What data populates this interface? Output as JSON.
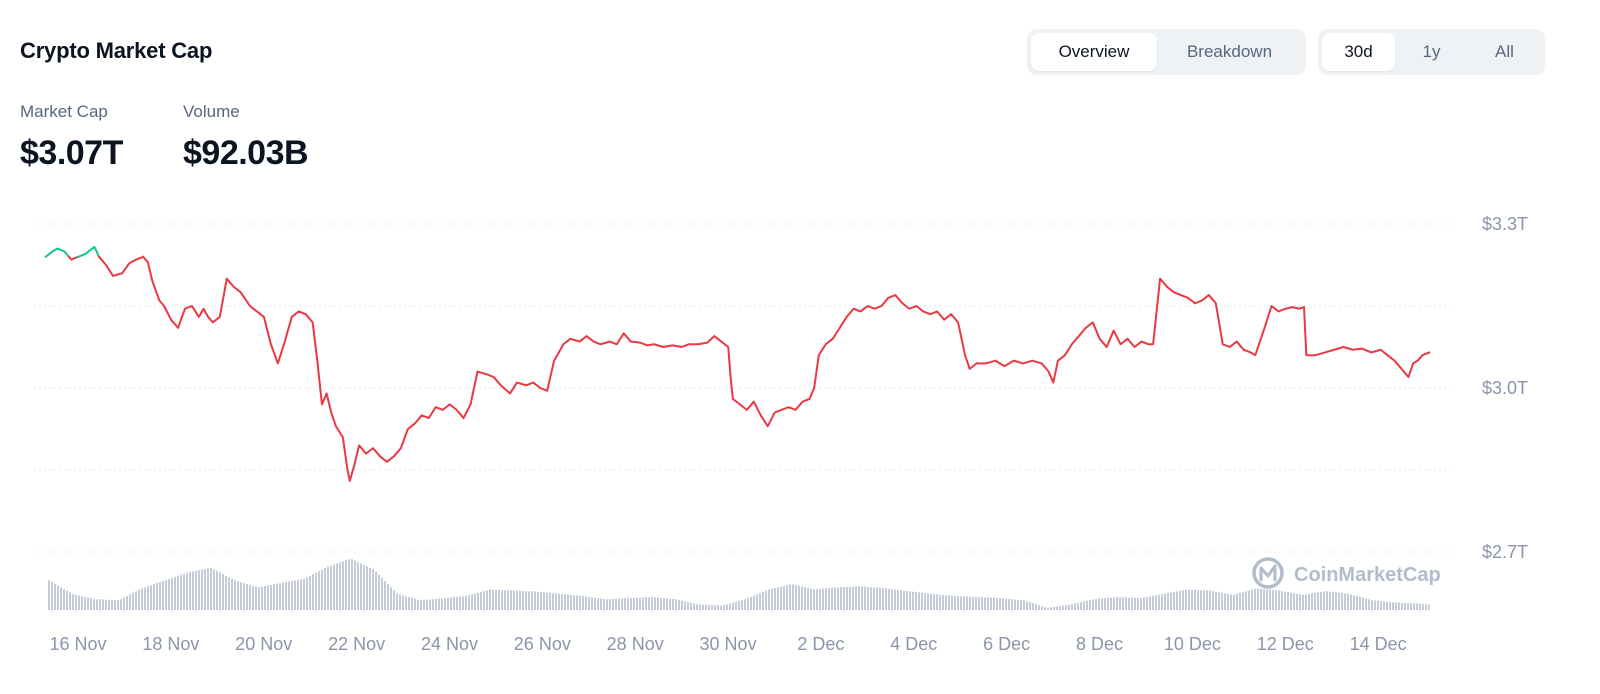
{
  "header": {
    "title": "Crypto Market Cap",
    "view_tabs": [
      {
        "label": "Overview",
        "active": true
      },
      {
        "label": "Breakdown",
        "active": false
      }
    ],
    "range_tabs": [
      {
        "label": "30d",
        "active": true
      },
      {
        "label": "1y",
        "active": false
      },
      {
        "label": "All",
        "active": false
      }
    ]
  },
  "stats": {
    "market_cap": {
      "label": "Market Cap",
      "value": "$3.07T"
    },
    "volume": {
      "label": "Volume",
      "value": "$92.03B"
    }
  },
  "watermark": {
    "text": "CoinMarketCap",
    "icon": "coinmarketcap-logo-icon"
  },
  "colors": {
    "line_down": "#ea3943",
    "line_up": "#16c784",
    "volume": "#c5cbd9",
    "grid": "#e3e7ee",
    "tick": "#8b95a9"
  },
  "chart_data": {
    "type": "line",
    "ylim": [
      2.7,
      3.3
    ],
    "y_unit": "T",
    "y_ticks": [
      {
        "value": 3.3,
        "label": "$3.3T"
      },
      {
        "value": 3.0,
        "label": "$3.0T"
      },
      {
        "value": 2.7,
        "label": "$2.7T"
      }
    ],
    "x_range": [
      0,
      30
    ],
    "x_ticks": [
      {
        "x": 0,
        "label": "16 Nov"
      },
      {
        "x": 2,
        "label": "18 Nov"
      },
      {
        "x": 4,
        "label": "20 Nov"
      },
      {
        "x": 6,
        "label": "22 Nov"
      },
      {
        "x": 8,
        "label": "24 Nov"
      },
      {
        "x": 10,
        "label": "26 Nov"
      },
      {
        "x": 12,
        "label": "28 Nov"
      },
      {
        "x": 14,
        "label": "30 Nov"
      },
      {
        "x": 16,
        "label": "2 Dec"
      },
      {
        "x": 18,
        "label": "4 Dec"
      },
      {
        "x": 20,
        "label": "6 Dec"
      },
      {
        "x": 22,
        "label": "8 Dec"
      },
      {
        "x": 24,
        "label": "10 Dec"
      },
      {
        "x": 26,
        "label": "12 Dec"
      },
      {
        "x": 28,
        "label": "14 Dec"
      }
    ],
    "baseline": 3.24,
    "series": [
      {
        "values": [
          [
            -0.05,
            3.24
          ],
          [
            0.1,
            3.25
          ],
          [
            0.2,
            3.255
          ],
          [
            0.35,
            3.25
          ],
          [
            0.5,
            3.235
          ],
          [
            0.65,
            3.24
          ],
          [
            0.8,
            3.245
          ],
          [
            1.0,
            3.258
          ],
          [
            1.1,
            3.24
          ],
          [
            1.25,
            3.225
          ],
          [
            1.4,
            3.205
          ],
          [
            1.6,
            3.21
          ],
          [
            1.75,
            3.228
          ],
          [
            1.9,
            3.235
          ],
          [
            2.05,
            3.24
          ],
          [
            2.15,
            3.23
          ],
          [
            2.25,
            3.195
          ],
          [
            2.4,
            3.16
          ],
          [
            2.5,
            3.15
          ],
          [
            2.65,
            3.125
          ],
          [
            2.8,
            3.11
          ],
          [
            2.95,
            3.145
          ],
          [
            3.1,
            3.15
          ],
          [
            3.25,
            3.13
          ],
          [
            3.35,
            3.145
          ],
          [
            3.45,
            3.13
          ],
          [
            3.55,
            3.12
          ],
          [
            3.7,
            3.13
          ],
          [
            3.85,
            3.2
          ],
          [
            4.0,
            3.185
          ],
          [
            4.15,
            3.175
          ],
          [
            4.35,
            3.15
          ],
          [
            4.5,
            3.14
          ],
          [
            4.65,
            3.13
          ],
          [
            4.8,
            3.08
          ],
          [
            4.95,
            3.045
          ],
          [
            5.1,
            3.085
          ],
          [
            5.25,
            3.13
          ],
          [
            5.4,
            3.14
          ],
          [
            5.55,
            3.135
          ],
          [
            5.7,
            3.12
          ],
          [
            5.8,
            3.05
          ],
          [
            5.9,
            2.97
          ],
          [
            6.0,
            2.99
          ],
          [
            6.1,
            2.955
          ],
          [
            6.2,
            2.93
          ],
          [
            6.35,
            2.91
          ],
          [
            6.45,
            2.85
          ],
          [
            6.5,
            2.83
          ],
          [
            6.6,
            2.86
          ],
          [
            6.7,
            2.895
          ],
          [
            6.85,
            2.88
          ],
          [
            7.0,
            2.89
          ],
          [
            7.15,
            2.875
          ],
          [
            7.3,
            2.865
          ],
          [
            7.45,
            2.875
          ],
          [
            7.6,
            2.89
          ],
          [
            7.75,
            2.925
          ],
          [
            7.9,
            2.935
          ],
          [
            8.05,
            2.95
          ],
          [
            8.2,
            2.945
          ],
          [
            8.35,
            2.965
          ],
          [
            8.5,
            2.96
          ],
          [
            8.65,
            2.97
          ],
          [
            8.8,
            2.96
          ],
          [
            8.95,
            2.945
          ],
          [
            9.1,
            2.97
          ],
          [
            9.25,
            3.03
          ],
          [
            9.45,
            3.025
          ],
          [
            9.6,
            3.02
          ],
          [
            9.75,
            3.005
          ],
          [
            9.95,
            2.99
          ],
          [
            10.1,
            3.01
          ],
          [
            10.3,
            3.005
          ],
          [
            10.45,
            3.01
          ],
          [
            10.6,
            3.0
          ],
          [
            10.75,
            2.995
          ],
          [
            10.9,
            3.05
          ],
          [
            11.1,
            3.08
          ],
          [
            11.25,
            3.09
          ],
          [
            11.45,
            3.085
          ],
          [
            11.6,
            3.095
          ],
          [
            11.75,
            3.085
          ],
          [
            11.9,
            3.08
          ],
          [
            12.1,
            3.085
          ],
          [
            12.25,
            3.08
          ],
          [
            12.4,
            3.1
          ],
          [
            12.55,
            3.085
          ],
          [
            12.75,
            3.083
          ],
          [
            12.9,
            3.078
          ],
          [
            13.05,
            3.08
          ],
          [
            13.25,
            3.075
          ],
          [
            13.45,
            3.078
          ],
          [
            13.65,
            3.075
          ],
          [
            13.8,
            3.08
          ],
          [
            14.0,
            3.08
          ],
          [
            14.2,
            3.083
          ],
          [
            14.35,
            3.095
          ],
          [
            14.5,
            3.085
          ],
          [
            14.65,
            3.075
          ],
          [
            14.7,
            3.02
          ],
          [
            14.75,
            2.98
          ],
          [
            14.9,
            2.97
          ],
          [
            15.05,
            2.96
          ],
          [
            15.2,
            2.975
          ],
          [
            15.35,
            2.95
          ],
          [
            15.5,
            2.93
          ],
          [
            15.65,
            2.955
          ],
          [
            15.8,
            2.96
          ],
          [
            15.95,
            2.965
          ],
          [
            16.1,
            2.96
          ],
          [
            16.25,
            2.975
          ],
          [
            16.4,
            2.98
          ],
          [
            16.5,
            3.0
          ],
          [
            16.6,
            3.06
          ],
          [
            16.75,
            3.08
          ],
          [
            16.9,
            3.09
          ],
          [
            17.05,
            3.11
          ],
          [
            17.2,
            3.13
          ],
          [
            17.35,
            3.145
          ],
          [
            17.5,
            3.14
          ],
          [
            17.65,
            3.15
          ],
          [
            17.8,
            3.145
          ],
          [
            17.95,
            3.15
          ],
          [
            18.1,
            3.165
          ],
          [
            18.25,
            3.17
          ],
          [
            18.4,
            3.155
          ],
          [
            18.55,
            3.145
          ],
          [
            18.7,
            3.15
          ],
          [
            18.85,
            3.14
          ],
          [
            19.0,
            3.135
          ],
          [
            19.15,
            3.14
          ],
          [
            19.3,
            3.125
          ],
          [
            19.45,
            3.135
          ],
          [
            19.6,
            3.12
          ],
          [
            19.75,
            3.06
          ],
          [
            19.85,
            3.035
          ],
          [
            20.0,
            3.045
          ],
          [
            20.2,
            3.045
          ],
          [
            20.4,
            3.05
          ],
          [
            20.6,
            3.04
          ],
          [
            20.8,
            3.05
          ],
          [
            21.0,
            3.045
          ],
          [
            21.2,
            3.05
          ],
          [
            21.4,
            3.045
          ],
          [
            21.55,
            3.03
          ],
          [
            21.65,
            3.01
          ],
          [
            21.75,
            3.05
          ],
          [
            21.9,
            3.06
          ],
          [
            22.05,
            3.08
          ],
          [
            22.2,
            3.095
          ],
          [
            22.35,
            3.11
          ],
          [
            22.5,
            3.12
          ],
          [
            22.65,
            3.09
          ],
          [
            22.8,
            3.075
          ],
          [
            22.95,
            3.105
          ],
          [
            23.1,
            3.08
          ],
          [
            23.25,
            3.09
          ],
          [
            23.4,
            3.075
          ],
          [
            23.55,
            3.085
          ],
          [
            23.7,
            3.08
          ],
          [
            23.8,
            3.08
          ],
          [
            23.95,
            3.2
          ],
          [
            24.1,
            3.185
          ],
          [
            24.25,
            3.175
          ],
          [
            24.4,
            3.17
          ],
          [
            24.55,
            3.165
          ],
          [
            24.7,
            3.155
          ],
          [
            24.85,
            3.16
          ],
          [
            25.0,
            3.17
          ],
          [
            25.15,
            3.155
          ],
          [
            25.3,
            3.08
          ],
          [
            25.45,
            3.075
          ],
          [
            25.6,
            3.085
          ],
          [
            25.75,
            3.07
          ],
          [
            25.9,
            3.065
          ],
          [
            26.0,
            3.06
          ],
          [
            26.1,
            3.085
          ],
          [
            26.2,
            3.11
          ],
          [
            26.35,
            3.15
          ],
          [
            26.5,
            3.14
          ],
          [
            26.65,
            3.145
          ],
          [
            26.8,
            3.148
          ],
          [
            26.95,
            3.145
          ],
          [
            27.05,
            3.148
          ],
          [
            27.1,
            3.06
          ],
          [
            27.3,
            3.06
          ],
          [
            27.5,
            3.065
          ],
          [
            27.7,
            3.07
          ],
          [
            27.9,
            3.075
          ],
          [
            28.1,
            3.07
          ],
          [
            28.3,
            3.072
          ],
          [
            28.5,
            3.065
          ],
          [
            28.7,
            3.07
          ],
          [
            28.85,
            3.06
          ],
          [
            29.0,
            3.05
          ],
          [
            29.15,
            3.035
          ],
          [
            29.3,
            3.02
          ],
          [
            29.4,
            3.045
          ],
          [
            29.5,
            3.05
          ],
          [
            29.6,
            3.06
          ],
          [
            29.75,
            3.065
          ]
        ]
      }
    ],
    "volume": {
      "description_values": "relative daily volume level, 0-1",
      "points": [
        [
          0,
          0.55
        ],
        [
          0.5,
          0.3
        ],
        [
          1.0,
          0.2
        ],
        [
          1.5,
          0.18
        ],
        [
          2.0,
          0.4
        ],
        [
          2.5,
          0.55
        ],
        [
          3.0,
          0.7
        ],
        [
          3.5,
          0.78
        ],
        [
          4.0,
          0.55
        ],
        [
          4.5,
          0.42
        ],
        [
          5.0,
          0.5
        ],
        [
          5.5,
          0.58
        ],
        [
          6.0,
          0.8
        ],
        [
          6.5,
          0.95
        ],
        [
          7.0,
          0.75
        ],
        [
          7.5,
          0.3
        ],
        [
          8.0,
          0.18
        ],
        [
          8.5,
          0.22
        ],
        [
          9.0,
          0.26
        ],
        [
          9.5,
          0.38
        ],
        [
          10.0,
          0.36
        ],
        [
          10.5,
          0.34
        ],
        [
          11.0,
          0.3
        ],
        [
          11.5,
          0.26
        ],
        [
          12.0,
          0.2
        ],
        [
          12.5,
          0.22
        ],
        [
          13.0,
          0.24
        ],
        [
          13.5,
          0.2
        ],
        [
          14.0,
          0.1
        ],
        [
          14.5,
          0.08
        ],
        [
          15.0,
          0.2
        ],
        [
          15.5,
          0.38
        ],
        [
          16.0,
          0.48
        ],
        [
          16.5,
          0.38
        ],
        [
          17.0,
          0.42
        ],
        [
          17.5,
          0.44
        ],
        [
          18.0,
          0.4
        ],
        [
          18.5,
          0.35
        ],
        [
          19.0,
          0.3
        ],
        [
          19.5,
          0.26
        ],
        [
          20.0,
          0.24
        ],
        [
          20.5,
          0.22
        ],
        [
          21.0,
          0.18
        ],
        [
          21.5,
          0.04
        ],
        [
          22.0,
          0.1
        ],
        [
          22.5,
          0.2
        ],
        [
          23.0,
          0.24
        ],
        [
          23.5,
          0.22
        ],
        [
          24.0,
          0.3
        ],
        [
          24.5,
          0.38
        ],
        [
          25.0,
          0.36
        ],
        [
          25.5,
          0.28
        ],
        [
          26.0,
          0.4
        ],
        [
          26.5,
          0.36
        ],
        [
          27.0,
          0.28
        ],
        [
          27.5,
          0.35
        ],
        [
          28.0,
          0.3
        ],
        [
          28.5,
          0.18
        ],
        [
          29.0,
          0.14
        ],
        [
          29.5,
          0.12
        ],
        [
          29.75,
          0.1
        ]
      ]
    }
  }
}
